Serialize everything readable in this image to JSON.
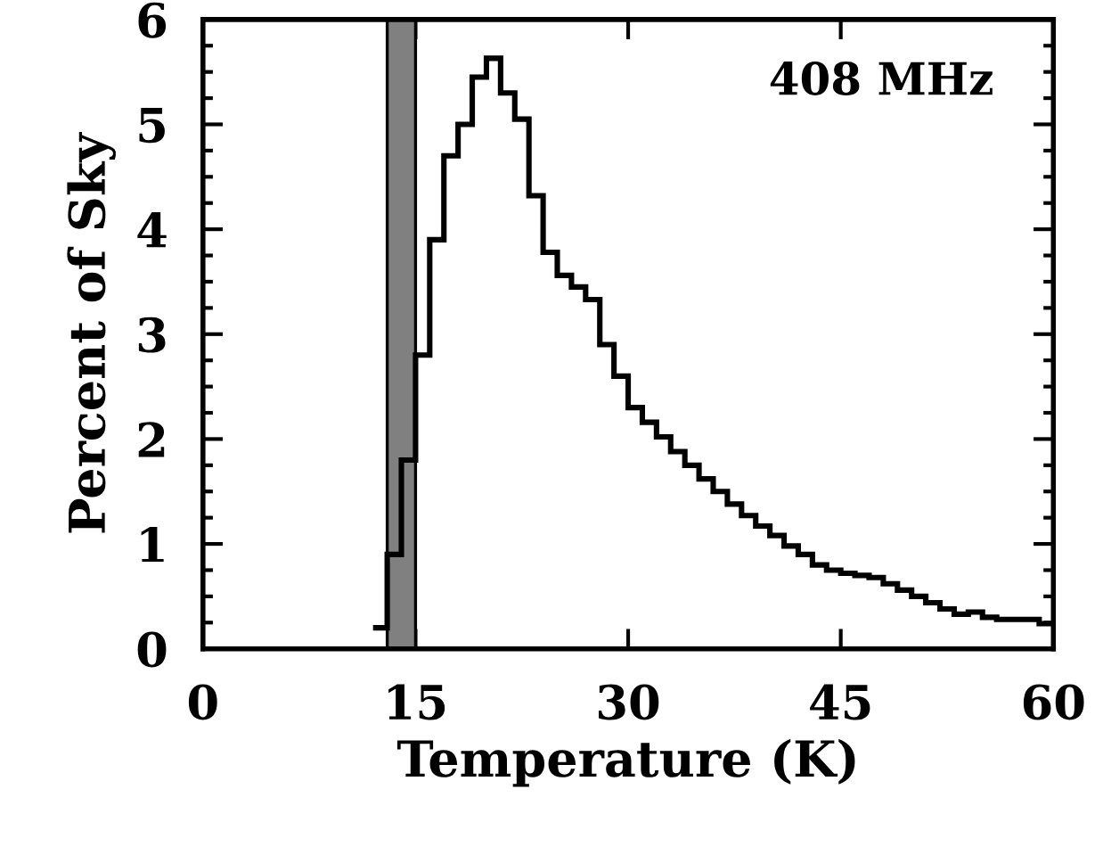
{
  "chart_data": {
    "type": "histogram",
    "xlabel": "Temperature (K)",
    "ylabel": "Percent of Sky",
    "annotations": [
      "408 MHz"
    ],
    "bins": [
      12,
      13,
      14,
      15,
      16,
      17,
      18,
      19,
      20,
      21,
      22,
      23,
      24,
      25,
      26,
      27,
      28,
      29,
      30,
      31,
      32,
      33,
      34,
      35,
      36,
      37,
      38,
      39,
      40,
      41,
      42,
      43,
      44,
      45,
      46,
      47,
      48,
      49,
      50,
      51,
      52,
      53,
      54,
      55,
      56,
      57,
      58,
      59,
      60
    ],
    "values": [
      0.2,
      0.9,
      1.8,
      2.8,
      3.9,
      4.7,
      5.0,
      5.45,
      5.63,
      5.3,
      5.05,
      4.32,
      3.78,
      3.56,
      3.45,
      3.33,
      2.9,
      2.6,
      2.3,
      2.16,
      2.02,
      1.88,
      1.75,
      1.62,
      1.5,
      1.38,
      1.27,
      1.17,
      1.08,
      0.98,
      0.9,
      0.8,
      0.75,
      0.72,
      0.7,
      0.68,
      0.62,
      0.56,
      0.5,
      0.44,
      0.38,
      0.33,
      0.35,
      0.3,
      0.28,
      0.28,
      0.28,
      0.24
    ],
    "color": "#000000",
    "bands": [
      {
        "axis": "x",
        "from": 13,
        "to": 15,
        "color": "#808080"
      }
    ],
    "xlim": [
      0,
      60
    ],
    "xticks": [
      0,
      15,
      30,
      45,
      60
    ],
    "ylim": [
      0,
      6
    ],
    "yticks": [
      0,
      1,
      2,
      3,
      4,
      5,
      6
    ],
    "grid": false,
    "legend": false
  }
}
